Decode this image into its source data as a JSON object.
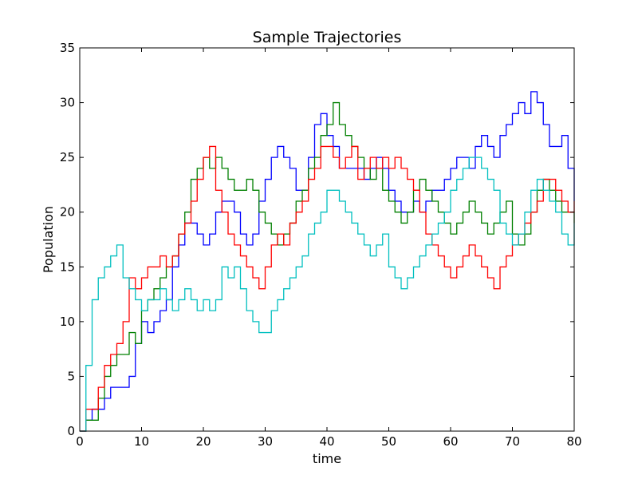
{
  "chart_data": {
    "type": "line",
    "title": "Sample Trajectories",
    "xlabel": "time",
    "ylabel": "Population",
    "xlim": [
      0,
      80
    ],
    "ylim": [
      0,
      35
    ],
    "xticks": [
      0,
      10,
      20,
      30,
      40,
      50,
      60,
      70,
      80
    ],
    "yticks": [
      0,
      5,
      10,
      15,
      20,
      25,
      30,
      35
    ],
    "grid": false,
    "legend": "none",
    "step": true,
    "series": [
      {
        "color": "#0000ff",
        "x": [
          0,
          1,
          2,
          3,
          4,
          5,
          6,
          7,
          8,
          9,
          10,
          11,
          12,
          13,
          14,
          15,
          16,
          17,
          18,
          19,
          20,
          21,
          22,
          23,
          24,
          25,
          26,
          27,
          28,
          29,
          30,
          31,
          32,
          33,
          34,
          35,
          36,
          37,
          38,
          39,
          40,
          41,
          42,
          43,
          44,
          45,
          46,
          47,
          48,
          49,
          50,
          51,
          52,
          53,
          54,
          55,
          56,
          57,
          58,
          59,
          60,
          61,
          62,
          63,
          64,
          65,
          66,
          67,
          68,
          69,
          70,
          71,
          72,
          73,
          74,
          75,
          76,
          77,
          78,
          79,
          80
        ],
        "y": [
          0,
          1,
          2,
          2,
          3,
          4,
          4,
          4,
          5,
          8,
          10,
          9,
          10,
          11,
          12,
          15,
          17,
          19,
          19,
          18,
          17,
          18,
          20,
          21,
          21,
          20,
          18,
          17,
          18,
          21,
          23,
          25,
          26,
          25,
          24,
          22,
          22,
          25,
          28,
          29,
          27,
          26,
          24,
          24,
          24,
          24,
          23,
          24,
          25,
          24,
          22,
          21,
          20,
          20,
          21,
          20,
          21,
          22,
          22,
          23,
          24,
          25,
          25,
          24,
          26,
          27,
          26,
          25,
          27,
          28,
          29,
          30,
          29,
          31,
          30,
          28,
          26,
          26,
          27,
          24,
          21
        ]
      },
      {
        "color": "#008000",
        "x": [
          0,
          1,
          2,
          3,
          4,
          5,
          6,
          7,
          8,
          9,
          10,
          11,
          12,
          13,
          14,
          15,
          16,
          17,
          18,
          19,
          20,
          21,
          22,
          23,
          24,
          25,
          26,
          27,
          28,
          29,
          30,
          31,
          32,
          33,
          34,
          35,
          36,
          37,
          38,
          39,
          40,
          41,
          42,
          43,
          44,
          45,
          46,
          47,
          48,
          49,
          50,
          51,
          52,
          53,
          54,
          55,
          56,
          57,
          58,
          59,
          60,
          61,
          62,
          63,
          64,
          65,
          66,
          67,
          68,
          69,
          70,
          71,
          72,
          73,
          74,
          75,
          76,
          77,
          78,
          79,
          80
        ],
        "y": [
          0,
          1,
          1,
          3,
          5,
          6,
          7,
          7,
          9,
          8,
          11,
          12,
          13,
          14,
          15,
          16,
          18,
          20,
          23,
          24,
          25,
          24,
          25,
          24,
          23,
          22,
          22,
          23,
          22,
          20,
          19,
          18,
          17,
          18,
          19,
          21,
          22,
          24,
          25,
          27,
          28,
          30,
          28,
          27,
          26,
          25,
          24,
          23,
          24,
          22,
          21,
          20,
          19,
          20,
          22,
          23,
          22,
          21,
          20,
          19,
          18,
          19,
          20,
          21,
          20,
          19,
          18,
          19,
          20,
          21,
          18,
          17,
          18,
          20,
          22,
          23,
          22,
          21,
          20,
          20,
          19
        ]
      },
      {
        "color": "#ff0000",
        "x": [
          0,
          1,
          2,
          3,
          4,
          5,
          6,
          7,
          8,
          9,
          10,
          11,
          12,
          13,
          14,
          15,
          16,
          17,
          18,
          19,
          20,
          21,
          22,
          23,
          24,
          25,
          26,
          27,
          28,
          29,
          30,
          31,
          32,
          33,
          34,
          35,
          36,
          37,
          38,
          39,
          40,
          41,
          42,
          43,
          44,
          45,
          46,
          47,
          48,
          49,
          50,
          51,
          52,
          53,
          54,
          55,
          56,
          57,
          58,
          59,
          60,
          61,
          62,
          63,
          64,
          65,
          66,
          67,
          68,
          69,
          70,
          71,
          72,
          73,
          74,
          75,
          76,
          77,
          78,
          79,
          80
        ],
        "y": [
          0,
          2,
          2,
          4,
          6,
          7,
          8,
          10,
          14,
          13,
          14,
          15,
          15,
          16,
          15,
          16,
          18,
          19,
          21,
          23,
          25,
          26,
          22,
          20,
          18,
          17,
          16,
          15,
          14,
          13,
          15,
          17,
          18,
          17,
          19,
          20,
          21,
          23,
          24,
          26,
          26,
          25,
          24,
          25,
          26,
          23,
          24,
          25,
          24,
          25,
          24,
          25,
          24,
          23,
          22,
          20,
          18,
          17,
          16,
          15,
          14,
          15,
          16,
          17,
          16,
          15,
          14,
          13,
          15,
          16,
          17,
          18,
          19,
          20,
          21,
          23,
          23,
          22,
          21,
          20,
          21
        ]
      },
      {
        "color": "#00bfbf",
        "x": [
          0,
          1,
          2,
          3,
          4,
          5,
          6,
          7,
          8,
          9,
          10,
          11,
          12,
          13,
          14,
          15,
          16,
          17,
          18,
          19,
          20,
          21,
          22,
          23,
          24,
          25,
          26,
          27,
          28,
          29,
          30,
          31,
          32,
          33,
          34,
          35,
          36,
          37,
          38,
          39,
          40,
          41,
          42,
          43,
          44,
          45,
          46,
          47,
          48,
          49,
          50,
          51,
          52,
          53,
          54,
          55,
          56,
          57,
          58,
          59,
          60,
          61,
          62,
          63,
          64,
          65,
          66,
          67,
          68,
          69,
          70,
          71,
          72,
          73,
          74,
          75,
          76,
          77,
          78,
          79,
          80
        ],
        "y": [
          0,
          6,
          12,
          14,
          15,
          16,
          17,
          14,
          13,
          12,
          11,
          12,
          12,
          13,
          12,
          11,
          12,
          13,
          12,
          11,
          12,
          11,
          12,
          15,
          14,
          15,
          13,
          11,
          10,
          9,
          9,
          11,
          12,
          13,
          14,
          15,
          16,
          18,
          19,
          20,
          22,
          22,
          21,
          20,
          19,
          18,
          17,
          16,
          17,
          18,
          15,
          14,
          13,
          14,
          15,
          16,
          17,
          18,
          19,
          20,
          22,
          23,
          24,
          25,
          25,
          24,
          23,
          22,
          19,
          18,
          17,
          18,
          20,
          22,
          23,
          22,
          21,
          20,
          18,
          17,
          19
        ]
      }
    ]
  }
}
